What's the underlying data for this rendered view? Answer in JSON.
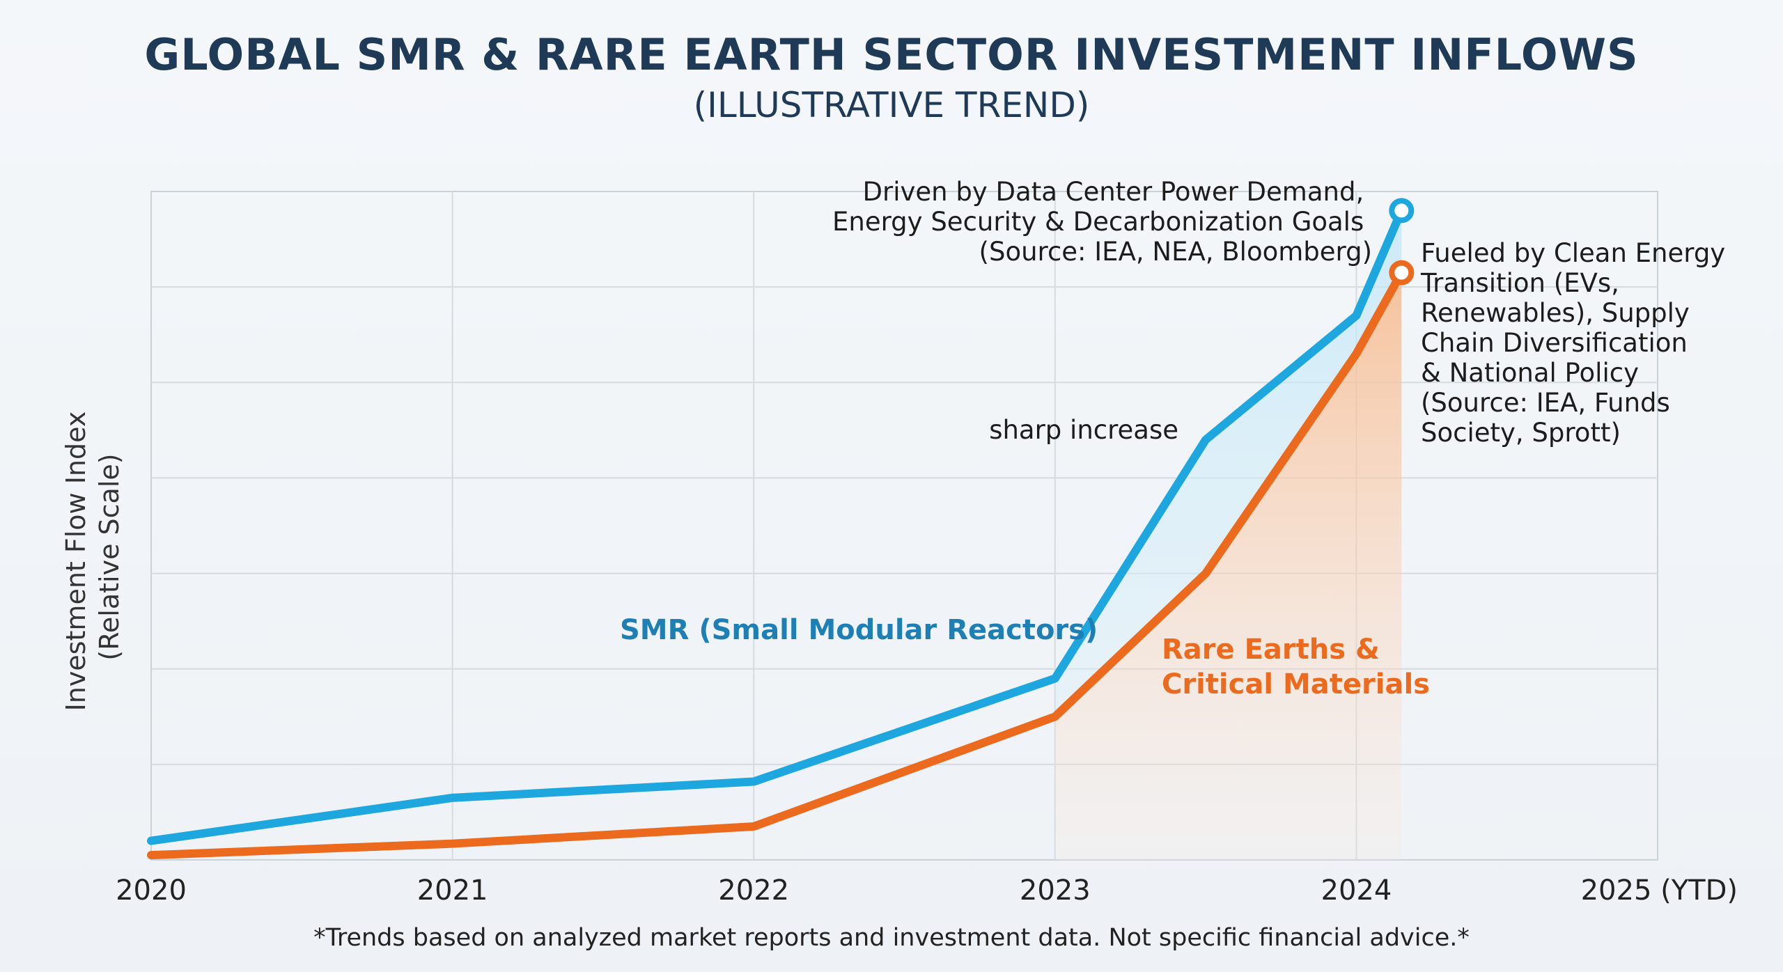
{
  "chart_data": {
    "type": "line",
    "title": "GLOBAL SMR & RARE EARTH SECTOR INVESTMENT INFLOWS",
    "subtitle": "(ILLUSTRATIVE TREND)",
    "ylabel_line1": "Investment Flow Index",
    "ylabel_line2": "(Relative Scale)",
    "xlabel": "",
    "x_ticks": [
      "2020",
      "2021",
      "2022",
      "2023",
      "2024",
      "2025 (YTD)"
    ],
    "xlim": [
      2020,
      2025
    ],
    "ylim": [
      0,
      7
    ],
    "grid": true,
    "series": [
      {
        "name": "SMR (Small Modular Reactors)",
        "color": "#1ea7df",
        "x": [
          2020,
          2021,
          2022,
          2023,
          2023.5,
          2024,
          2024.15
        ],
        "y": [
          0.2,
          0.65,
          0.82,
          1.9,
          4.4,
          5.7,
          6.8
        ]
      },
      {
        "name": "Rare Earths & Critical Materials",
        "color": "#ec6a1e",
        "x": [
          2020,
          2021,
          2022,
          2023,
          2023.5,
          2024,
          2024.15
        ],
        "y": [
          0.05,
          0.17,
          0.35,
          1.5,
          3.0,
          5.3,
          6.15
        ]
      }
    ],
    "series_labels": {
      "smr": "SMR (Small Modular Reactors)",
      "re_line1": "Rare Earths &",
      "re_line2": "Critical Materials"
    },
    "annotations": {
      "sharp": "sharp increase",
      "smr_driver": [
        "Driven by Data Center Power Demand,",
        "Energy Security & Decarbonization Goals",
        "(Source: IEA, NEA, Bloomberg)"
      ],
      "re_driver": [
        "Fueled by Clean Energy",
        "Transition (EVs,",
        "Renewables), Supply",
        "Chain Diversification",
        "& National Policy",
        "(Source: IEA, Funds",
        "Society, Sprott)"
      ]
    },
    "footnote": "*Trends based on analyzed market reports and investment data. Not specific financial advice.*"
  }
}
